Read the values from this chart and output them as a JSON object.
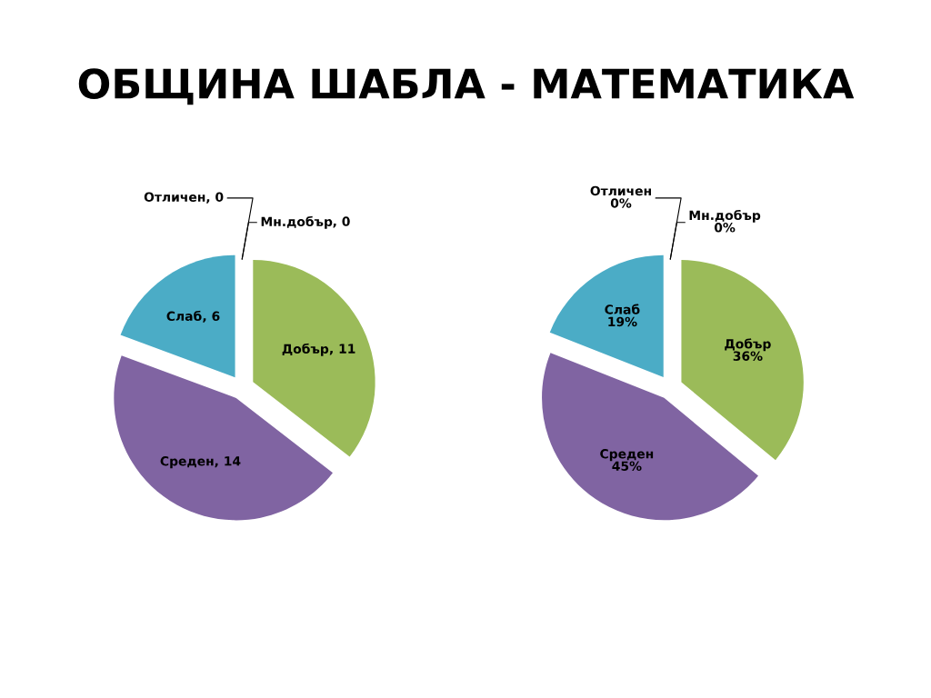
{
  "chart_data": [
    {
      "type": "pie",
      "title": "ОБЩИНА ШАБЛА - МАТЕМАТИКА",
      "categories": [
        "Отличен",
        "Мн.добър",
        "Добър",
        "Среден",
        "Слаб"
      ],
      "values": [
        0,
        0,
        11,
        14,
        6
      ],
      "colors": [
        "#4f81bd",
        "#c0504d",
        "#9bbb59",
        "#8064a2",
        "#4bacc6"
      ],
      "value_labels": [
        ", 0",
        ", 0",
        ", 11",
        ", 14",
        ", 6"
      ]
    },
    {
      "type": "pie",
      "categories": [
        "Отличен",
        "Мн.добър",
        "Добър",
        "Среден",
        "Слаб"
      ],
      "values": [
        0,
        0,
        36,
        45,
        19
      ],
      "colors": [
        "#4f81bd",
        "#c0504d",
        "#9bbb59",
        "#8064a2",
        "#4bacc6"
      ],
      "value_labels": [
        "0%",
        "0%",
        "36%",
        "45%",
        "19%"
      ]
    }
  ]
}
